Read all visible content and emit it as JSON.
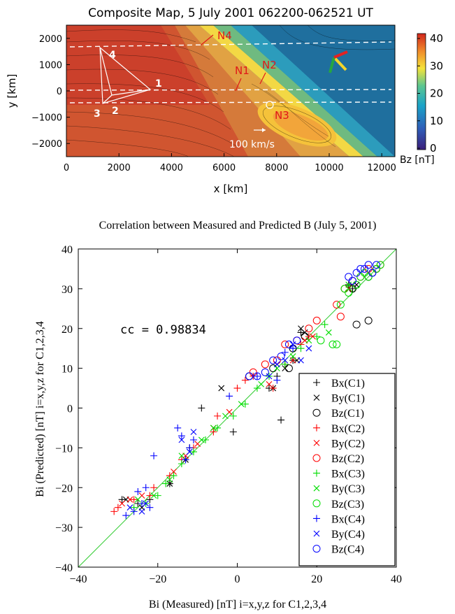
{
  "chart_data": [
    {
      "type": "heatmap",
      "title": "Composite Map,  5 July 2001  062200-062521 UT",
      "xlabel": "x [km]",
      "ylabel": "y [km]",
      "xlim": [
        0,
        12500
      ],
      "ylim": [
        -2500,
        2500
      ],
      "xticks": [
        "0",
        "2000",
        "4000",
        "6000",
        "8000",
        "10000",
        "12000"
      ],
      "yticks": [
        "2000",
        "1000",
        "0",
        "−1000",
        "−2000"
      ],
      "colorbar": {
        "label": "Bz [nT]",
        "min": 0,
        "max": 40,
        "ticks": [
          "40",
          "30",
          "20",
          "10",
          "0"
        ]
      },
      "spacecraft_labels": [
        "1",
        "2",
        "3",
        "4"
      ],
      "null_labels": [
        "N1",
        "N2",
        "N3",
        "N4"
      ],
      "velocity_scale_label": "100 km/s",
      "colors": {
        "nulls": "#e01818",
        "vectors": "#ffffff"
      }
    },
    {
      "type": "scatter",
      "title": "Correlation between Measured and Predicted B (July 5, 2001)",
      "xlabel": "Bi (Measured) [nT] i=x,y,z for C1,2,3,4",
      "ylabel": "Bi (Predicted) [nT] i=x,y,z for C1,2,3,4",
      "xlim": [
        -40,
        40
      ],
      "ylim": [
        -40,
        40
      ],
      "xticks": [
        "−40",
        "−20",
        "0",
        "20",
        "40"
      ],
      "yticks": [
        "40",
        "30",
        "20",
        "10",
        "0",
        "−10",
        "−20",
        "−30",
        "−40"
      ],
      "annotation": "cc = 0.98834",
      "identity_line": true,
      "legend_position": "lower-right",
      "series": [
        {
          "name": "Bx(C1)",
          "marker": "plus",
          "color": "#000000",
          "points": [
            [
              -29,
              -23
            ],
            [
              -25,
              -24
            ],
            [
              -22,
              -23
            ],
            [
              -17,
              -19
            ],
            [
              -12,
              -10
            ],
            [
              11,
              -3
            ],
            [
              -1,
              -6
            ],
            [
              -9,
              0
            ],
            [
              8,
              5
            ],
            [
              14,
              12
            ],
            [
              10,
              8
            ],
            [
              16,
              19
            ],
            [
              28,
              31
            ],
            [
              29,
              30
            ]
          ]
        },
        {
          "name": "By(C1)",
          "marker": "x",
          "color": "#000000",
          "points": [
            [
              -28,
              -23
            ],
            [
              -24,
              -25
            ],
            [
              -17,
              -19
            ],
            [
              -13,
              -13
            ],
            [
              -4,
              5
            ],
            [
              9,
              5
            ],
            [
              12,
              10
            ],
            [
              15,
              12
            ],
            [
              16,
              20
            ],
            [
              17,
              19
            ],
            [
              28,
              30
            ],
            [
              30,
              31
            ]
          ]
        },
        {
          "name": "Bz(C1)",
          "marker": "circle",
          "color": "#000000",
          "points": [
            [
              3,
              8
            ],
            [
              9,
              10
            ],
            [
              14,
              15
            ],
            [
              17,
              18
            ],
            [
              13,
              10
            ],
            [
              33,
              22
            ],
            [
              30,
              21
            ],
            [
              33,
              33
            ],
            [
              34,
              34
            ],
            [
              29,
              30
            ],
            [
              35,
              35
            ]
          ]
        },
        {
          "name": "Bx(C2)",
          "marker": "plus",
          "color": "#ff0000",
          "points": [
            [
              -31,
              -26
            ],
            [
              -30,
              -25
            ],
            [
              -26,
              -23
            ],
            [
              -22,
              -22
            ],
            [
              -21,
              -20
            ],
            [
              -17,
              -17
            ],
            [
              -14,
              -13
            ],
            [
              -11,
              -10
            ],
            [
              -6,
              -6
            ],
            [
              -5,
              -2
            ],
            [
              0,
              5
            ],
            [
              2,
              7
            ],
            [
              4,
              8
            ],
            [
              9,
              5
            ],
            [
              12,
              11
            ],
            [
              16,
              16
            ],
            [
              18,
              18
            ]
          ]
        },
        {
          "name": "By(C2)",
          "marker": "x",
          "color": "#ff0000",
          "points": [
            [
              -29,
              -24
            ],
            [
              -27,
              -23
            ],
            [
              -24,
              -22
            ],
            [
              -16,
              -16
            ],
            [
              -13,
              -12
            ],
            [
              -10,
              -9
            ],
            [
              -6,
              -5
            ],
            [
              -2,
              -1
            ],
            [
              8,
              6
            ],
            [
              14,
              12
            ],
            [
              17,
              17
            ],
            [
              19,
              18
            ],
            [
              28,
              30
            ]
          ]
        },
        {
          "name": "Bz(C2)",
          "marker": "circle",
          "color": "#ff0000",
          "points": [
            [
              4,
              9
            ],
            [
              7,
              11
            ],
            [
              10,
              12
            ],
            [
              12,
              16
            ],
            [
              15,
              17
            ],
            [
              18,
              20
            ],
            [
              20,
              22
            ],
            [
              25,
              26
            ],
            [
              27,
              30
            ],
            [
              29,
              32
            ],
            [
              31,
              33
            ],
            [
              33,
              35
            ],
            [
              35,
              35
            ],
            [
              36,
              36
            ],
            [
              26,
              23
            ]
          ]
        },
        {
          "name": "Bx(C3)",
          "marker": "plus",
          "color": "#00dd00",
          "points": [
            [
              -26,
              -25
            ],
            [
              -23,
              -24
            ],
            [
              -20,
              -22
            ],
            [
              -18,
              -19
            ],
            [
              -16,
              -17
            ],
            [
              -14,
              -14
            ],
            [
              -11,
              -11
            ],
            [
              -8,
              -8
            ],
            [
              -5,
              -5
            ],
            [
              -1,
              -2
            ],
            [
              2,
              1
            ],
            [
              5,
              5
            ],
            [
              8,
              8
            ],
            [
              12,
              11
            ],
            [
              16,
              15
            ],
            [
              20,
              18
            ],
            [
              22,
              21
            ]
          ]
        },
        {
          "name": "By(C3)",
          "marker": "x",
          "color": "#00dd00",
          "points": [
            [
              -25,
              -23
            ],
            [
              -21,
              -22
            ],
            [
              -17,
              -18
            ],
            [
              -14,
              -12
            ],
            [
              -9,
              -8
            ],
            [
              -6,
              -5
            ],
            [
              -3,
              -2
            ],
            [
              1,
              1
            ],
            [
              6,
              6
            ],
            [
              10,
              10
            ],
            [
              14,
              13
            ],
            [
              18,
              17
            ],
            [
              23,
              19
            ],
            [
              28,
              31
            ]
          ]
        },
        {
          "name": "Bz(C3)",
          "marker": "circle",
          "color": "#00dd00",
          "points": [
            [
              21,
              17
            ],
            [
              26,
              26
            ],
            [
              27,
              30
            ],
            [
              28,
              29
            ],
            [
              30,
              31
            ],
            [
              31,
              33
            ],
            [
              32,
              34
            ],
            [
              33,
              33
            ],
            [
              35,
              35
            ],
            [
              36,
              36
            ],
            [
              24,
              16
            ],
            [
              25,
              16
            ]
          ]
        },
        {
          "name": "Bx(C4)",
          "marker": "plus",
          "color": "#0000ff",
          "points": [
            [
              -28,
              -27
            ],
            [
              -26,
              -26
            ],
            [
              -25,
              -21
            ],
            [
              -24,
              -24
            ],
            [
              -23,
              -20
            ],
            [
              -22,
              -25
            ],
            [
              -21,
              -12
            ],
            [
              -15,
              -5
            ],
            [
              -14,
              -7
            ],
            [
              -13,
              -13
            ],
            [
              -12,
              -10
            ],
            [
              -11,
              -8
            ],
            [
              -2,
              3
            ],
            [
              5,
              8
            ],
            [
              10,
              7
            ],
            [
              12,
              14
            ],
            [
              14,
              15
            ]
          ]
        },
        {
          "name": "By(C4)",
          "marker": "x",
          "color": "#0000ff",
          "points": [
            [
              -27,
              -25
            ],
            [
              -24,
              -26
            ],
            [
              -23,
              -24
            ],
            [
              -14,
              -8
            ],
            [
              -12,
              -11
            ],
            [
              -11,
              -6
            ],
            [
              8,
              8
            ],
            [
              10,
              11
            ],
            [
              12,
              12
            ],
            [
              14,
              16
            ],
            [
              16,
              12
            ],
            [
              18,
              15
            ]
          ]
        },
        {
          "name": "Bz(C4)",
          "marker": "circle",
          "color": "#0000ff",
          "points": [
            [
              3,
              8
            ],
            [
              5,
              8
            ],
            [
              7,
              9
            ],
            [
              9,
              12
            ],
            [
              11,
              13
            ],
            [
              13,
              16
            ],
            [
              15,
              17
            ],
            [
              28,
              33
            ],
            [
              30,
              34
            ],
            [
              31,
              35
            ],
            [
              32,
              35
            ],
            [
              33,
              36
            ],
            [
              34,
              34
            ],
            [
              35,
              36
            ],
            [
              29,
              32
            ]
          ]
        }
      ]
    }
  ]
}
